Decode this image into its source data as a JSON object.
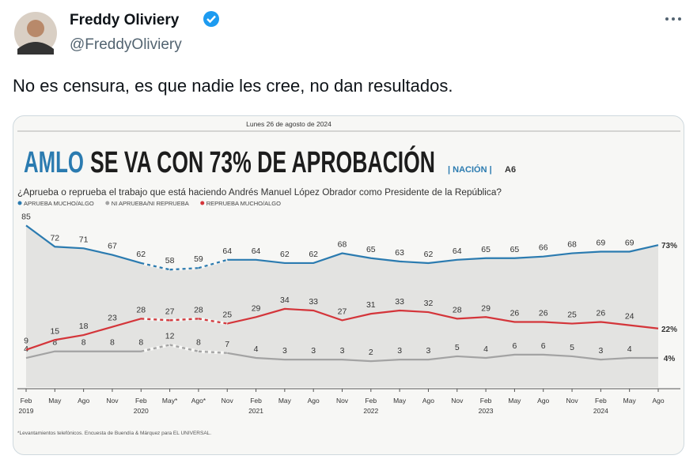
{
  "tweet": {
    "name": "Freddy Oliviery",
    "handle": "@FreddyOliviery",
    "text": "No es censura, es que nadie les cree, no dan resultados."
  },
  "chart_data": {
    "type": "line",
    "date": "Lunes 26 de agosto de 2024",
    "title_highlight": "AMLO",
    "title": "SE VA CON 73% DE APROBACIÓN",
    "section": "| NACIÓN |",
    "page": "A6",
    "subtitle": "¿Aprueba o reprueba el trabajo que está haciendo Andrés Manuel López Obrador como Presidente de la República?",
    "footnote": "*Levantamientos telefónicos. Encuesta de Buendía & Márquez para EL UNIVERSAL.",
    "categories": [
      "Feb",
      "May",
      "Ago",
      "Nov",
      "Feb",
      "May*",
      "Ago*",
      "Nov",
      "Feb",
      "May",
      "Ago",
      "Nov",
      "Feb",
      "May",
      "Ago",
      "Nov",
      "Feb",
      "May",
      "Ago",
      "Nov",
      "Feb",
      "May",
      "Ago"
    ],
    "category_years": [
      "2019",
      null,
      null,
      null,
      "2020",
      null,
      null,
      null,
      "2021",
      null,
      null,
      null,
      "2022",
      null,
      null,
      null,
      "2023",
      null,
      null,
      null,
      "2024",
      null,
      null
    ],
    "series": [
      {
        "name": "APRUEBA MUCHO/ALGO",
        "color": "#2b7bb0",
        "values": [
          85,
          72,
          71,
          67,
          62,
          58,
          59,
          64,
          64,
          62,
          62,
          68,
          65,
          63,
          62,
          64,
          65,
          65,
          66,
          68,
          69,
          69,
          73
        ],
        "value_labels": [
          "85",
          "72",
          "71",
          "67",
          "62",
          "58",
          "59",
          "64",
          "64",
          "62",
          "62",
          "68",
          "65",
          "63",
          "62",
          "64",
          "65",
          "65",
          "66",
          "68",
          "69",
          "69",
          "73%"
        ]
      },
      {
        "name": "NI APRUEBA/NI REPRUEBA",
        "color": "#a3a3a3",
        "values": [
          4,
          8,
          8,
          8,
          8,
          12,
          8,
          7,
          4,
          3,
          3,
          3,
          2,
          3,
          3,
          5,
          4,
          6,
          6,
          5,
          3,
          4,
          4
        ],
        "value_labels": [
          "4",
          "8",
          "8",
          "8",
          "8",
          "12",
          "8",
          "7",
          "4",
          "3",
          "3",
          "3",
          "2",
          "3",
          "3",
          "5",
          "4",
          "6",
          "6",
          "5",
          "3",
          "4",
          "4%"
        ]
      },
      {
        "name": "REPRUEBA MUCHO/ALGO",
        "color": "#d4353a",
        "values": [
          9,
          15,
          18,
          23,
          28,
          27,
          28,
          25,
          29,
          34,
          33,
          27,
          31,
          33,
          32,
          28,
          29,
          26,
          26,
          25,
          26,
          24,
          22
        ],
        "value_labels": [
          "9",
          "15",
          "18",
          "23",
          "28",
          "27",
          "28",
          "25",
          "29",
          "34",
          "33",
          "27",
          "31",
          "33",
          "32",
          "28",
          "29",
          "26",
          "26",
          "25",
          "26",
          "24",
          "22%"
        ]
      }
    ]
  }
}
